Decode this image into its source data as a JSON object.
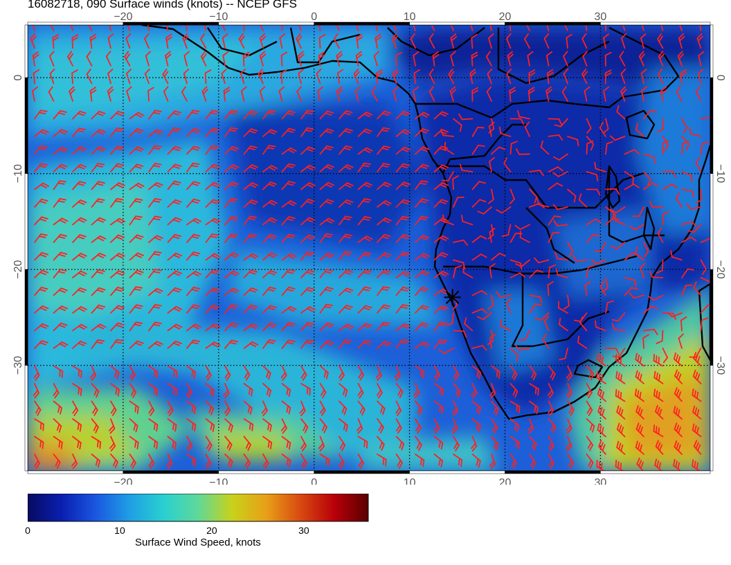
{
  "title": "16082718, 090 Surface winds (knots) -- NCEP GFS",
  "map": {
    "lon_range": [
      -30,
      41.5
    ],
    "lat_range": [
      -41,
      5.5
    ],
    "lon_ticks": [
      -20,
      -10,
      0,
      10,
      20,
      30
    ],
    "lat_ticks": [
      0,
      -10,
      -20,
      -30
    ],
    "lon_tick_labels": [
      "−20",
      "−10",
      "0",
      "10",
      "20",
      "30"
    ],
    "lat_tick_labels": [
      "0",
      "−10",
      "−20",
      "−30"
    ],
    "grid": true,
    "marker": {
      "name": "station-marker",
      "lon": 14.5,
      "lat": -22.9
    },
    "wind_barb_color": "#ff2020",
    "coast_color": "#000000"
  },
  "colorbar": {
    "title": "Surface Wind Speed, knots",
    "min": 0,
    "max": 37,
    "ticks": [
      0,
      10,
      20,
      30
    ],
    "colors": [
      "#070b60",
      "#0a1fb0",
      "#1a57e0",
      "#1f9fe4",
      "#29d0d0",
      "#5fd89a",
      "#c8d21a",
      "#e8a018",
      "#d84a10",
      "#b8000a",
      "#5a0000"
    ]
  }
}
